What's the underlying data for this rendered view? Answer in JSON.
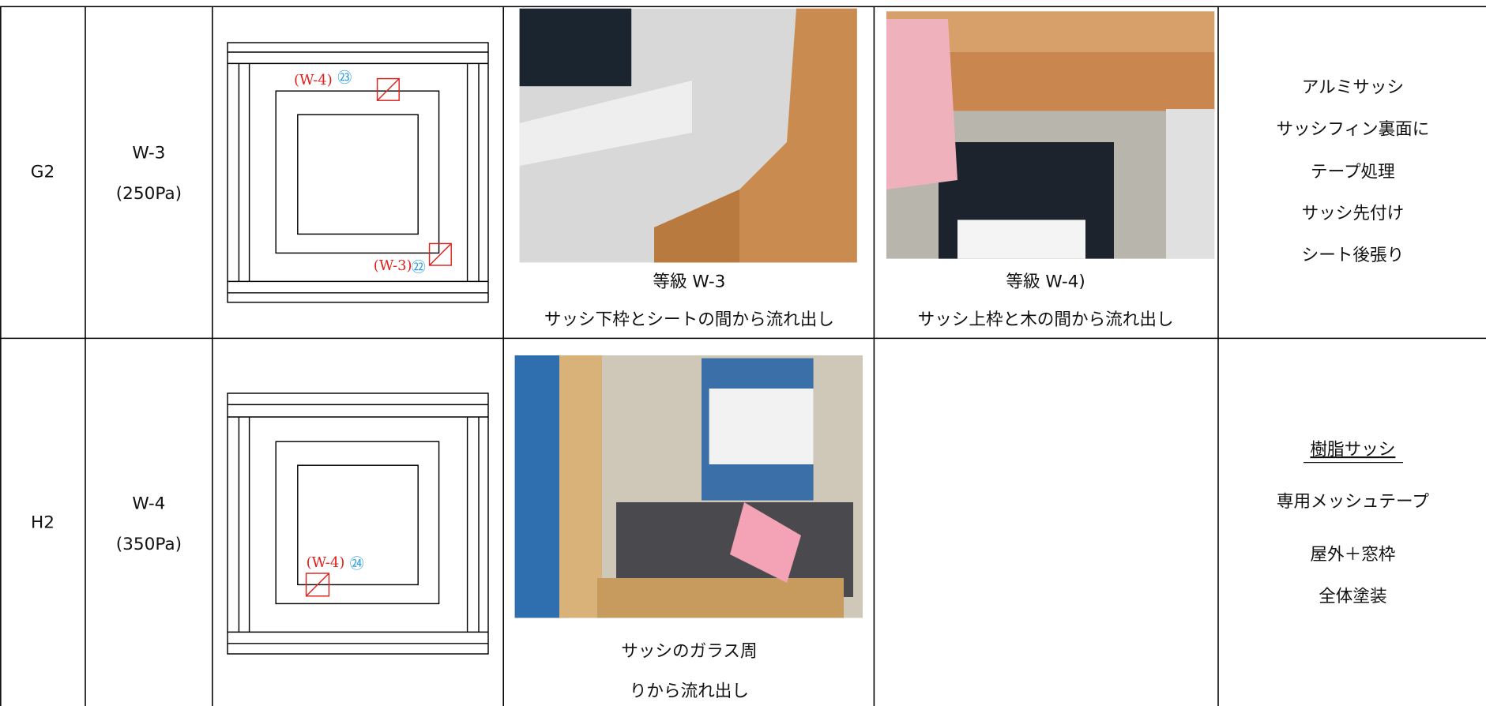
{
  "table": {
    "rows": [
      {
        "id": "G2",
        "grade": [
          "W-3",
          "(250Pa)"
        ],
        "diagram_labels": [
          {
            "text": "(W-4)",
            "num": "㉓"
          },
          {
            "text": "(W-3)",
            "num": "㉒"
          }
        ],
        "photo_captions": [
          [
            "等級 W-3",
            "サッシ下枠とシートの間から流れ出し"
          ],
          [
            "等級 W-4)",
            "サッシ上枠と木の間から流れ出し"
          ]
        ],
        "notes": [
          "アルミサッシ",
          "サッシフィン裏面に",
          "テープ処理",
          "サッシ先付け",
          "シート後張り"
        ]
      },
      {
        "id": "H2",
        "grade": [
          "W-4",
          "(350Pa)"
        ],
        "diagram_labels": [
          {
            "text": "(W-4)",
            "num": "㉔"
          }
        ],
        "photo_captions": [
          [
            "サッシのガラス周",
            "りから流れ出し"
          ]
        ],
        "notes": [
          "樹脂サッシ",
          "専用メッシュテープ",
          "屋外＋窓枠",
          "全体塗装"
        ]
      }
    ]
  }
}
